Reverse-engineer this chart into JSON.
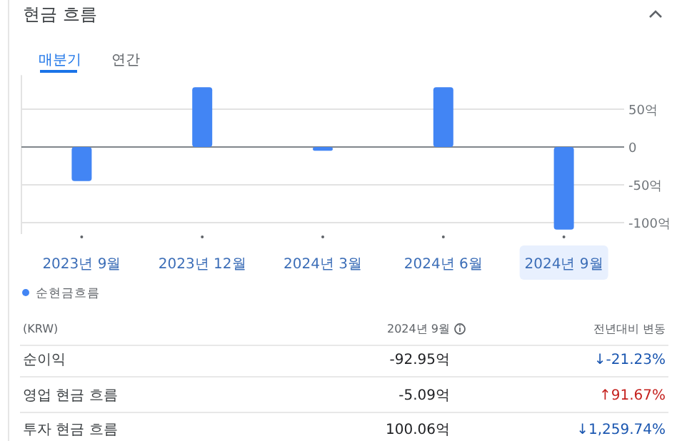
{
  "chart_data": {
    "type": "bar",
    "title": "현금 흐름",
    "categories": [
      "2023년 9월",
      "2023년 12월",
      "2024년 3월",
      "2024년 6월",
      "2024년 9월"
    ],
    "series": [
      {
        "name": "순현금흐름",
        "color": "#4285f4",
        "values": [
          -45,
          79,
          -5,
          79,
          -109
        ]
      }
    ],
    "yticks": [
      {
        "value": 50,
        "label": "50억"
      },
      0,
      {
        "value": -50,
        "label": "-50억"
      },
      {
        "value": -100,
        "label": "-100억"
      }
    ],
    "ylim": [
      -115,
      95
    ],
    "grid": "y",
    "legend": "bottom left",
    "annotations": [
      "매분기",
      "연간",
      "(KRW)",
      "2024년 9월",
      "전년대비 변동",
      "순이익",
      "-92.95억",
      "↓-21.23%",
      "영업 현금 흐름",
      "-5.09억",
      "↑91.67%",
      "투자 현금 흐름",
      "100.06억",
      "↓1,259.74%"
    ]
  }
}
